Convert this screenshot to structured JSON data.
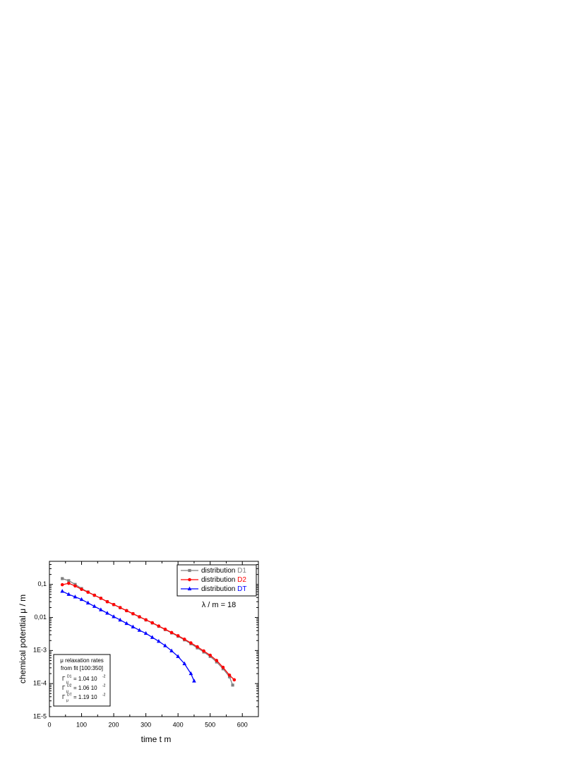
{
  "chart_data": {
    "type": "line",
    "xlabel": "time  t m",
    "ylabel": "chemical potential  μ / m",
    "xlim": [
      0,
      650
    ],
    "xticks": [
      0,
      100,
      200,
      300,
      400,
      500,
      600
    ],
    "ylim": [
      1e-05,
      0.5
    ],
    "log_y": true,
    "yticks": [
      {
        "value": 1e-05,
        "label": "1E-5"
      },
      {
        "value": 0.0001,
        "label": "1E-4"
      },
      {
        "value": 0.001,
        "label": "1E-3"
      },
      {
        "value": 0.01,
        "label": "0,01"
      },
      {
        "value": 0.1,
        "label": "0,1"
      }
    ],
    "legend_prefix": "distribution",
    "legend_position": "upper right",
    "series": [
      {
        "name": "D1",
        "color": "#808080",
        "marker": "square",
        "x": [
          40,
          60,
          80,
          100,
          120,
          140,
          160,
          180,
          200,
          220,
          240,
          260,
          280,
          300,
          320,
          340,
          360,
          380,
          400,
          420,
          440,
          460,
          480,
          500,
          520,
          540,
          560,
          570
        ],
        "values": [
          0.15,
          0.13,
          0.1,
          0.075,
          0.059,
          0.047,
          0.038,
          0.03,
          0.0245,
          0.0198,
          0.016,
          0.0129,
          0.0104,
          0.0084,
          0.0068,
          0.0054,
          0.0043,
          0.0034,
          0.0027,
          0.0021,
          0.0016,
          0.0012,
          0.0009,
          0.00066,
          0.00045,
          0.00028,
          0.00016,
          9e-05
        ]
      },
      {
        "name": "D2",
        "color": "#ff0000",
        "marker": "circle",
        "x": [
          40,
          60,
          80,
          100,
          120,
          140,
          160,
          180,
          200,
          220,
          240,
          260,
          280,
          300,
          320,
          340,
          360,
          380,
          400,
          420,
          440,
          460,
          480,
          500,
          520,
          540,
          560,
          575
        ],
        "values": [
          0.098,
          0.108,
          0.09,
          0.071,
          0.058,
          0.047,
          0.038,
          0.03,
          0.0246,
          0.0199,
          0.0161,
          0.013,
          0.0105,
          0.0085,
          0.0069,
          0.0055,
          0.0044,
          0.0035,
          0.0028,
          0.0022,
          0.0017,
          0.0013,
          0.00097,
          0.00072,
          0.0005,
          0.00031,
          0.00018,
          0.00013
        ]
      },
      {
        "name": "DT",
        "color": "#0000ff",
        "marker": "triangle",
        "x": [
          40,
          60,
          80,
          100,
          120,
          140,
          160,
          180,
          200,
          220,
          240,
          260,
          280,
          300,
          320,
          340,
          360,
          380,
          400,
          420,
          440,
          450
        ],
        "values": [
          0.062,
          0.05,
          0.042,
          0.035,
          0.0275,
          0.0217,
          0.0171,
          0.0135,
          0.0106,
          0.0084,
          0.0066,
          0.0052,
          0.0041,
          0.0033,
          0.0025,
          0.0019,
          0.0014,
          0.00098,
          0.00066,
          0.0004,
          0.0002,
          0.00012
        ]
      }
    ],
    "annotation": "λ / m = 18",
    "fit_box": {
      "lines": [
        "μ relaxation rates",
        "from fit [100:350]"
      ],
      "rates": [
        {
          "symbol": "Γ",
          "sub": "μ",
          "sup": "D1",
          "text": "= 1.04  10",
          "exp": "-2",
          "color": "#808080"
        },
        {
          "symbol": "Γ",
          "sub": "μ",
          "sup": "D2",
          "text": "= 1.06  10",
          "exp": "-2",
          "color": "#ff0000"
        },
        {
          "symbol": "Γ",
          "sub": "μ",
          "sup": "DT",
          "text": "= 1.19  10",
          "exp": "-2",
          "color": "#0000ff"
        }
      ]
    }
  }
}
